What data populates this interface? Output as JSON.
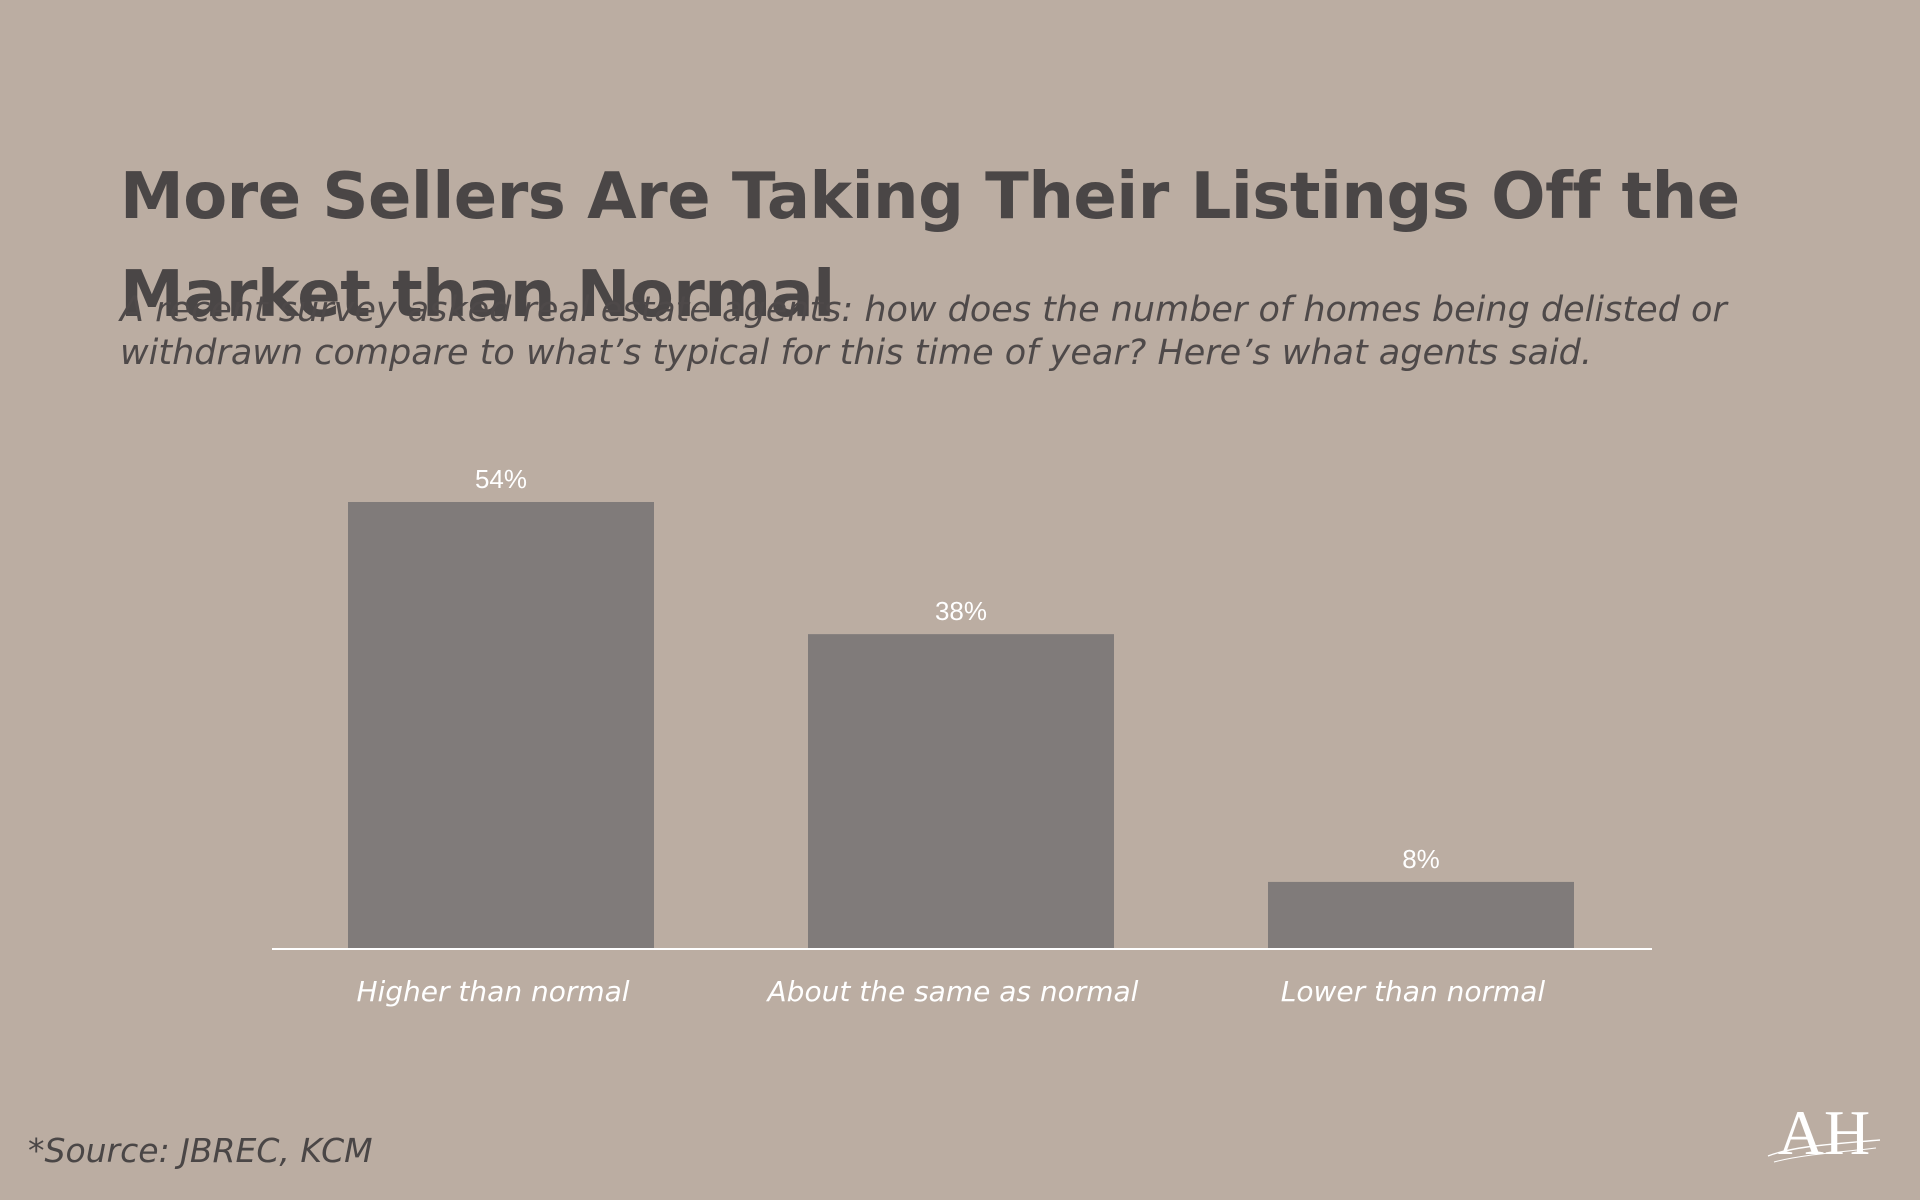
{
  "title": "More Sellers Are Taking Their Listings Off the Market than Normal",
  "subtitle": "A recent survey asked real estate agents: how does the number of homes being delisted or withdrawn compare to what’s typical for this time of year? Here’s what agents said.",
  "source": "*Source: JBREC, KCM",
  "logo": {
    "text": "AH",
    "icon": "ah-monogram-logo"
  },
  "colors": {
    "background": "#bbada2",
    "bar": "#807b7a",
    "heading": "#4a4646",
    "label": "#ffffff",
    "axis": "#ffffff"
  },
  "chart_data": {
    "type": "bar",
    "categories": [
      "Higher than normal",
      "About the same as normal",
      "Lower than normal"
    ],
    "values": [
      54,
      38,
      8
    ],
    "value_labels": [
      "54%",
      "38%",
      "8%"
    ],
    "ylim": [
      0,
      54
    ],
    "xlabel": "",
    "ylabel": "",
    "grid": false,
    "legend": "none"
  }
}
